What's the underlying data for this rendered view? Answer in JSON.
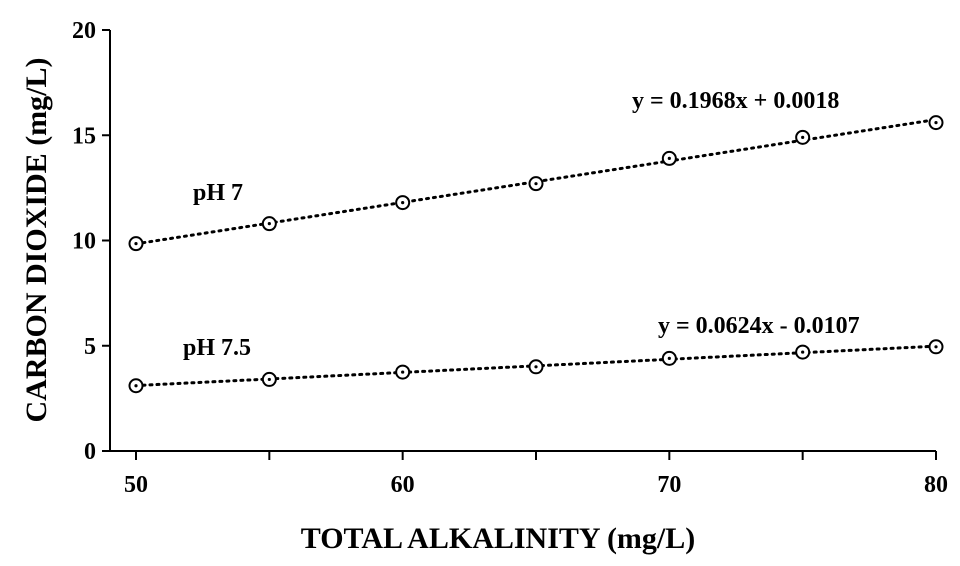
{
  "chart_data": {
    "type": "scatter",
    "xlabel": "TOTAL ALKALINITY (mg/L)",
    "ylabel": "CARBON DIOXIDE (mg/L)",
    "xlim": [
      50,
      80
    ],
    "ylim": [
      0,
      20
    ],
    "xticks": [
      50,
      60,
      70,
      80
    ],
    "xticks_minor": [
      55,
      65,
      75
    ],
    "yticks": [
      0,
      5,
      10,
      15,
      20
    ],
    "grid": false,
    "legend": "none",
    "series": [
      {
        "name": "pH 7",
        "marker": "open-circle",
        "x": [
          50,
          55,
          60,
          65,
          70,
          75,
          80
        ],
        "y": [
          9.85,
          10.8,
          11.8,
          12.7,
          13.9,
          14.9,
          15.6
        ],
        "trendline": {
          "style": "dotted",
          "slope": 0.1968,
          "intercept": 0.0018,
          "equation": "y = 0.1968x + 0.0018"
        }
      },
      {
        "name": "pH 7.5",
        "marker": "open-circle",
        "x": [
          50,
          55,
          60,
          65,
          70,
          75,
          80
        ],
        "y": [
          3.1,
          3.4,
          3.75,
          4.0,
          4.4,
          4.7,
          4.95
        ],
        "trendline": {
          "style": "dotted",
          "slope": 0.0624,
          "intercept": -0.0107,
          "equation": "y = 0.0624x - 0.0107"
        }
      }
    ]
  }
}
